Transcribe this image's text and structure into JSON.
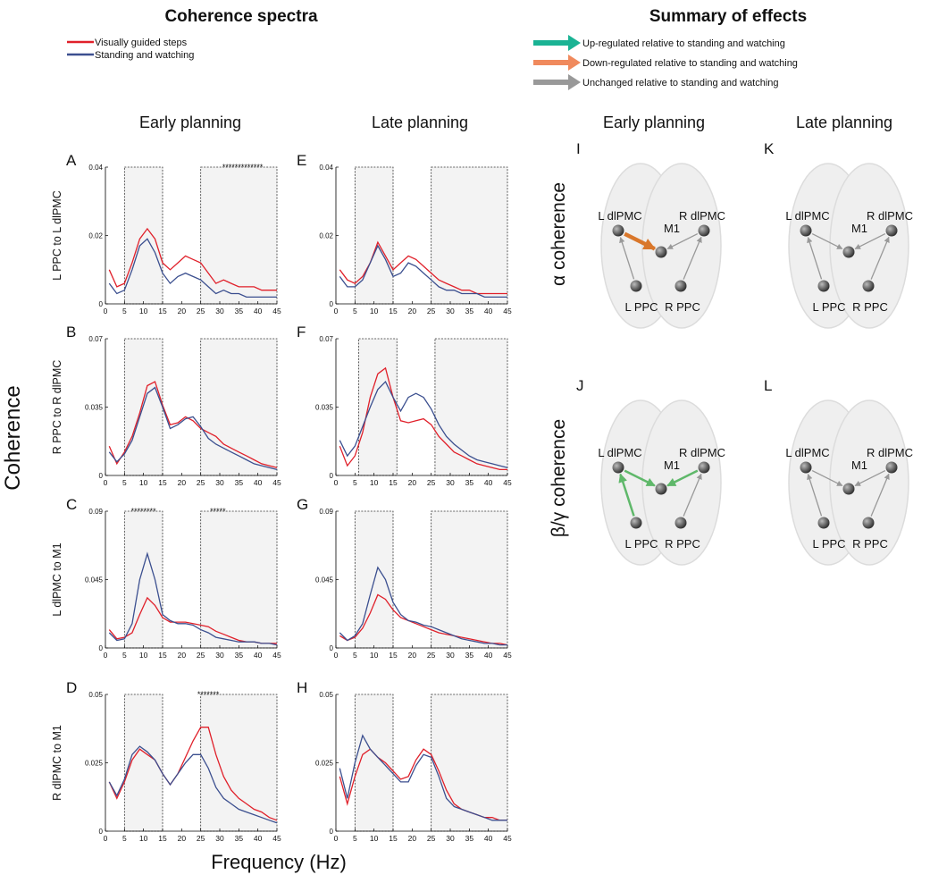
{
  "figure": {
    "titles": [
      "Coherence spectra",
      "Summary of effects"
    ],
    "effects": [
      {
        "text": "Up-regulated relative to standing and watching",
        "color": "#1ab394"
      },
      {
        "text": "Down-regulated relative to standing and watching",
        "color": "#f08a5d"
      },
      {
        "text": "Unchanged relative to standing and watching",
        "color": "#999999"
      }
    ],
    "columns": [
      "Early planning",
      "Late planning",
      "Early planning",
      "Late planning"
    ],
    "rows": [
      "α coherence",
      "β/γ coherence"
    ],
    "y_label": "Coherence",
    "x_label": "Frequency (Hz)"
  },
  "diagrams": [
    {
      "label": "I",
      "nodes": [
        "L dlPMC",
        "M1",
        "R dlPMC",
        "L PPC",
        "R PPC"
      ]
    },
    {
      "label": "K",
      "nodes": [
        "L dlPMC",
        "M1",
        "R dlPMC",
        "L PPC",
        "R PPC"
      ]
    },
    {
      "label": "J",
      "nodes": [
        "L dlPMC",
        "M1",
        "R dlPMC",
        "L PPC",
        "R PPC"
      ]
    },
    {
      "label": "L",
      "nodes": [
        "L dlPMC",
        "M1",
        "R dlPMC",
        "L PPC",
        "R PPC"
      ]
    }
  ],
  "chart_data": [
    {
      "type": "line",
      "label": "A",
      "ylabel": "L PPC to L dlPMC",
      "x": [
        1,
        3,
        5,
        7,
        9,
        11,
        13,
        15,
        17,
        19,
        21,
        23,
        25,
        27,
        29,
        31,
        33,
        35,
        37,
        39,
        41,
        43,
        45
      ],
      "series": [
        {
          "name": "Visually guided steps",
          "color": "#e0202a",
          "values": [
            0.01,
            0.005,
            0.006,
            0.012,
            0.019,
            0.022,
            0.019,
            0.012,
            0.01,
            0.012,
            0.014,
            0.013,
            0.012,
            0.009,
            0.006,
            0.007,
            0.006,
            0.005,
            0.005,
            0.005,
            0.004,
            0.004,
            0.004
          ]
        },
        {
          "name": "Standing and watching",
          "color": "#3b4f8f",
          "values": [
            0.006,
            0.003,
            0.004,
            0.01,
            0.017,
            0.019,
            0.015,
            0.009,
            0.006,
            0.008,
            0.009,
            0.008,
            0.007,
            0.005,
            0.003,
            0.004,
            0.003,
            0.003,
            0.002,
            0.002,
            0.002,
            0.002,
            0.002
          ]
        }
      ],
      "xlim": [
        0,
        45
      ],
      "ylim": [
        0,
        0.04
      ],
      "xticks": [
        0,
        5,
        10,
        15,
        20,
        25,
        30,
        35,
        40,
        45
      ],
      "yticks": [
        0,
        0.02,
        0.04
      ],
      "windows": [
        [
          5,
          15
        ],
        [
          25,
          45
        ]
      ],
      "annotations": [
        {
          "text": "*************",
          "x": [
            28,
            44
          ]
        }
      ]
    },
    {
      "type": "line",
      "label": "B",
      "ylabel": "R PPC to R dlPMC",
      "x": [
        1,
        3,
        5,
        7,
        9,
        11,
        13,
        15,
        17,
        19,
        21,
        23,
        25,
        27,
        29,
        31,
        33,
        35,
        37,
        39,
        41,
        43,
        45
      ],
      "series": [
        {
          "name": "Visually guided steps",
          "color": "#e0202a",
          "values": [
            0.015,
            0.006,
            0.012,
            0.02,
            0.032,
            0.046,
            0.048,
            0.036,
            0.026,
            0.027,
            0.03,
            0.028,
            0.024,
            0.022,
            0.02,
            0.016,
            0.014,
            0.012,
            0.01,
            0.008,
            0.006,
            0.005,
            0.004
          ]
        },
        {
          "name": "Standing and watching",
          "color": "#3b4f8f",
          "values": [
            0.012,
            0.007,
            0.011,
            0.018,
            0.03,
            0.042,
            0.045,
            0.035,
            0.024,
            0.026,
            0.029,
            0.03,
            0.025,
            0.019,
            0.016,
            0.014,
            0.012,
            0.01,
            0.008,
            0.006,
            0.005,
            0.004,
            0.003
          ]
        }
      ],
      "xlim": [
        0,
        45
      ],
      "ylim": [
        0,
        0.07
      ],
      "xticks": [
        0,
        5,
        10,
        15,
        20,
        25,
        30,
        35,
        40,
        45
      ],
      "yticks": [
        0,
        0.035,
        0.07
      ],
      "windows": [
        [
          5,
          15
        ],
        [
          25,
          45
        ]
      ],
      "annotations": []
    },
    {
      "type": "line",
      "label": "C",
      "ylabel": "L dlPMC to M1",
      "x": [
        1,
        3,
        5,
        7,
        9,
        11,
        13,
        15,
        17,
        19,
        21,
        23,
        25,
        27,
        29,
        31,
        33,
        35,
        37,
        39,
        41,
        43,
        45
      ],
      "series": [
        {
          "name": "Visually guided steps",
          "color": "#e0202a",
          "values": [
            0.012,
            0.006,
            0.007,
            0.01,
            0.022,
            0.033,
            0.028,
            0.02,
            0.017,
            0.017,
            0.017,
            0.016,
            0.015,
            0.014,
            0.011,
            0.009,
            0.007,
            0.005,
            0.004,
            0.004,
            0.003,
            0.003,
            0.003
          ]
        },
        {
          "name": "Standing and watching",
          "color": "#3b4f8f",
          "values": [
            0.01,
            0.005,
            0.006,
            0.016,
            0.045,
            0.062,
            0.045,
            0.022,
            0.018,
            0.016,
            0.016,
            0.015,
            0.012,
            0.01,
            0.007,
            0.006,
            0.005,
            0.004,
            0.004,
            0.004,
            0.003,
            0.003,
            0.002
          ]
        }
      ],
      "xlim": [
        0,
        45
      ],
      "ylim": [
        0,
        0.09
      ],
      "xticks": [
        0,
        5,
        10,
        15,
        20,
        25,
        30,
        35,
        40,
        45
      ],
      "yticks": [
        0,
        0.045,
        0.09
      ],
      "windows": [
        [
          5,
          15
        ],
        [
          25,
          45
        ]
      ],
      "annotations": [
        {
          "text": "********",
          "x": [
            6,
            14
          ]
        },
        {
          "text": "*****",
          "x": [
            26,
            33
          ]
        }
      ]
    },
    {
      "type": "line",
      "label": "D",
      "ylabel": "R dlPMC to M1",
      "x": [
        1,
        3,
        5,
        7,
        9,
        11,
        13,
        15,
        17,
        19,
        21,
        23,
        25,
        27,
        29,
        31,
        33,
        35,
        37,
        39,
        41,
        43,
        45
      ],
      "series": [
        {
          "name": "Visually guided steps",
          "color": "#e0202a",
          "values": [
            0.018,
            0.012,
            0.018,
            0.026,
            0.03,
            0.028,
            0.026,
            0.021,
            0.017,
            0.021,
            0.027,
            0.033,
            0.038,
            0.038,
            0.028,
            0.02,
            0.015,
            0.012,
            0.01,
            0.008,
            0.007,
            0.005,
            0.004
          ]
        },
        {
          "name": "Standing and watching",
          "color": "#3b4f8f",
          "values": [
            0.018,
            0.013,
            0.019,
            0.028,
            0.031,
            0.029,
            0.026,
            0.021,
            0.017,
            0.021,
            0.025,
            0.028,
            0.028,
            0.023,
            0.016,
            0.012,
            0.01,
            0.008,
            0.007,
            0.006,
            0.005,
            0.004,
            0.003
          ]
        }
      ],
      "xlim": [
        0,
        45
      ],
      "ylim": [
        0,
        0.05
      ],
      "xticks": [
        0,
        5,
        10,
        15,
        20,
        25,
        30,
        35,
        40,
        45
      ],
      "yticks": [
        0,
        0.025,
        0.05
      ],
      "windows": [
        [
          5,
          15
        ],
        [
          25,
          45
        ]
      ],
      "annotations": [
        {
          "text": "*******",
          "x": [
            24,
            30
          ]
        }
      ]
    },
    {
      "type": "line",
      "label": "E",
      "x": [
        1,
        3,
        5,
        7,
        9,
        11,
        13,
        15,
        17,
        19,
        21,
        23,
        25,
        27,
        29,
        31,
        33,
        35,
        37,
        39,
        41,
        43,
        45
      ],
      "series": [
        {
          "name": "Visually guided steps",
          "color": "#e0202a",
          "values": [
            0.01,
            0.007,
            0.006,
            0.008,
            0.012,
            0.018,
            0.014,
            0.01,
            0.012,
            0.014,
            0.013,
            0.011,
            0.009,
            0.007,
            0.006,
            0.005,
            0.004,
            0.004,
            0.003,
            0.003,
            0.003,
            0.003,
            0.003
          ]
        },
        {
          "name": "Standing and watching",
          "color": "#3b4f8f",
          "values": [
            0.008,
            0.005,
            0.005,
            0.007,
            0.012,
            0.017,
            0.013,
            0.008,
            0.009,
            0.012,
            0.011,
            0.009,
            0.007,
            0.005,
            0.004,
            0.004,
            0.003,
            0.003,
            0.003,
            0.002,
            0.002,
            0.002,
            0.002
          ]
        }
      ],
      "xlim": [
        0,
        45
      ],
      "ylim": [
        0,
        0.04
      ],
      "xticks": [
        0,
        5,
        10,
        15,
        20,
        25,
        30,
        35,
        40,
        45
      ],
      "yticks": [
        0,
        0.02,
        0.04
      ],
      "windows": [
        [
          5,
          15
        ],
        [
          25,
          45
        ]
      ],
      "annotations": []
    },
    {
      "type": "line",
      "label": "F",
      "x": [
        1,
        3,
        5,
        7,
        9,
        11,
        13,
        15,
        17,
        19,
        21,
        23,
        25,
        27,
        29,
        31,
        33,
        35,
        37,
        39,
        41,
        43,
        45
      ],
      "series": [
        {
          "name": "Visually guided steps",
          "color": "#e0202a",
          "values": [
            0.015,
            0.005,
            0.01,
            0.022,
            0.04,
            0.052,
            0.055,
            0.04,
            0.028,
            0.027,
            0.028,
            0.029,
            0.026,
            0.02,
            0.016,
            0.012,
            0.01,
            0.008,
            0.006,
            0.005,
            0.004,
            0.003,
            0.003
          ]
        },
        {
          "name": "Standing and watching",
          "color": "#3b4f8f",
          "values": [
            0.018,
            0.01,
            0.015,
            0.025,
            0.035,
            0.044,
            0.048,
            0.04,
            0.033,
            0.04,
            0.042,
            0.04,
            0.034,
            0.026,
            0.02,
            0.016,
            0.013,
            0.01,
            0.008,
            0.007,
            0.006,
            0.005,
            0.004
          ]
        }
      ],
      "xlim": [
        0,
        45
      ],
      "ylim": [
        0,
        0.07
      ],
      "xticks": [
        0,
        5,
        10,
        15,
        20,
        25,
        30,
        35,
        40,
        45
      ],
      "yticks": [
        0,
        0.035,
        0.07
      ],
      "windows": [
        [
          6,
          16
        ],
        [
          26,
          45
        ]
      ],
      "annotations": []
    },
    {
      "type": "line",
      "label": "G",
      "x": [
        1,
        3,
        5,
        7,
        9,
        11,
        13,
        15,
        17,
        19,
        21,
        23,
        25,
        27,
        29,
        31,
        33,
        35,
        37,
        39,
        41,
        43,
        45
      ],
      "series": [
        {
          "name": "Visually guided steps",
          "color": "#e0202a",
          "values": [
            0.008,
            0.005,
            0.007,
            0.013,
            0.023,
            0.035,
            0.032,
            0.025,
            0.02,
            0.018,
            0.016,
            0.014,
            0.012,
            0.01,
            0.009,
            0.008,
            0.007,
            0.006,
            0.005,
            0.004,
            0.003,
            0.003,
            0.002
          ]
        },
        {
          "name": "Standing and watching",
          "color": "#3b4f8f",
          "values": [
            0.01,
            0.005,
            0.008,
            0.016,
            0.035,
            0.053,
            0.045,
            0.03,
            0.022,
            0.018,
            0.017,
            0.015,
            0.014,
            0.012,
            0.01,
            0.008,
            0.006,
            0.005,
            0.004,
            0.003,
            0.003,
            0.002,
            0.002
          ]
        }
      ],
      "xlim": [
        0,
        45
      ],
      "ylim": [
        0,
        0.09
      ],
      "xticks": [
        0,
        5,
        10,
        15,
        20,
        25,
        30,
        35,
        40,
        45
      ],
      "yticks": [
        0,
        0.045,
        0.09
      ],
      "windows": [
        [
          5,
          15
        ],
        [
          25,
          45
        ]
      ],
      "annotations": []
    },
    {
      "type": "line",
      "label": "H",
      "x": [
        1,
        3,
        5,
        7,
        9,
        11,
        13,
        15,
        17,
        19,
        21,
        23,
        25,
        27,
        29,
        31,
        33,
        35,
        37,
        39,
        41,
        43,
        45
      ],
      "series": [
        {
          "name": "Visually guided steps",
          "color": "#e0202a",
          "values": [
            0.02,
            0.01,
            0.02,
            0.028,
            0.03,
            0.027,
            0.025,
            0.022,
            0.019,
            0.02,
            0.026,
            0.03,
            0.028,
            0.022,
            0.015,
            0.01,
            0.008,
            0.007,
            0.006,
            0.005,
            0.005,
            0.004,
            0.004
          ]
        },
        {
          "name": "Standing and watching",
          "color": "#3b4f8f",
          "values": [
            0.023,
            0.012,
            0.025,
            0.035,
            0.03,
            0.027,
            0.024,
            0.021,
            0.018,
            0.018,
            0.024,
            0.028,
            0.027,
            0.02,
            0.012,
            0.009,
            0.008,
            0.007,
            0.006,
            0.005,
            0.004,
            0.004,
            0.004
          ]
        }
      ],
      "xlim": [
        0,
        45
      ],
      "ylim": [
        0,
        0.05
      ],
      "xticks": [
        0,
        5,
        10,
        15,
        20,
        25,
        30,
        35,
        40,
        45
      ],
      "yticks": [
        0,
        0.025,
        0.05
      ],
      "windows": [
        [
          5,
          15
        ],
        [
          25,
          45
        ]
      ],
      "annotations": []
    }
  ]
}
